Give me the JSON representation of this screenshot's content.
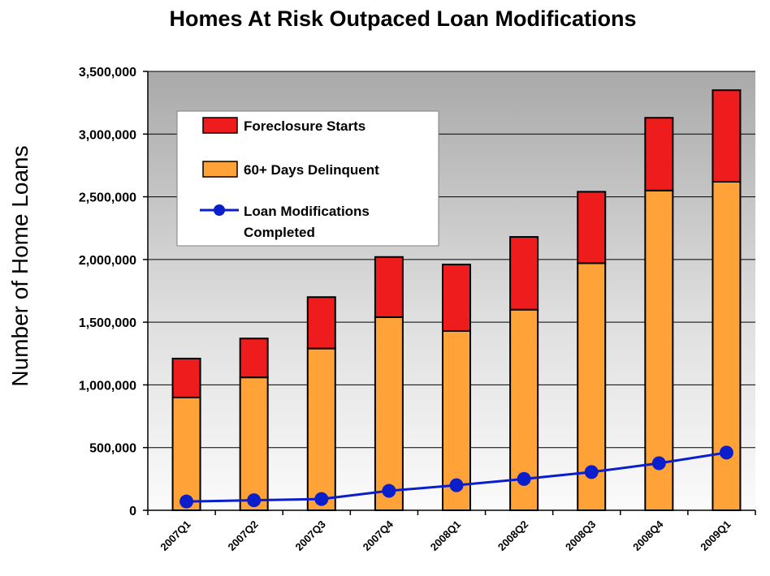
{
  "chart_data": {
    "type": "bar",
    "title": "Homes At Risk Outpaced Loan Modifications",
    "ylabel": "Number of Home Loans",
    "xlabel": "",
    "ylim": [
      0,
      3500000
    ],
    "yticks": [
      0,
      500000,
      1000000,
      1500000,
      2000000,
      2500000,
      3000000,
      3500000
    ],
    "ytick_labels": [
      "0",
      "500,000",
      "1,000,000",
      "1,500,000",
      "2,000,000",
      "2,500,000",
      "3,000,000",
      "3,500,000"
    ],
    "categories": [
      "2007Q1",
      "2007Q2",
      "2007Q3",
      "2007Q4",
      "2008Q1",
      "2008Q2",
      "2008Q3",
      "2008Q4",
      "2009Q1"
    ],
    "stacked": true,
    "grid": true,
    "legend_position": "top-left",
    "series": [
      {
        "name": "60+ Days Delinquent",
        "kind": "bar",
        "color": "#FFA238",
        "values": [
          900000,
          1060000,
          1290000,
          1540000,
          1430000,
          1600000,
          1970000,
          2550000,
          2620000
        ]
      },
      {
        "name": "Foreclosure Starts",
        "kind": "bar",
        "color": "#EE1C1C",
        "values": [
          310000,
          310000,
          410000,
          480000,
          530000,
          580000,
          570000,
          580000,
          730000
        ]
      },
      {
        "name": "Loan Modifications Completed",
        "kind": "line",
        "color": "#0A1ECC",
        "values": [
          70000,
          80000,
          90000,
          155000,
          200000,
          250000,
          305000,
          375000,
          460000
        ]
      }
    ],
    "legend": {
      "foreclosure": "Foreclosure Starts",
      "delinquent": "60+ Days Delinquent",
      "mods_line1": "Loan Modifications",
      "mods_line2": "Completed"
    }
  }
}
